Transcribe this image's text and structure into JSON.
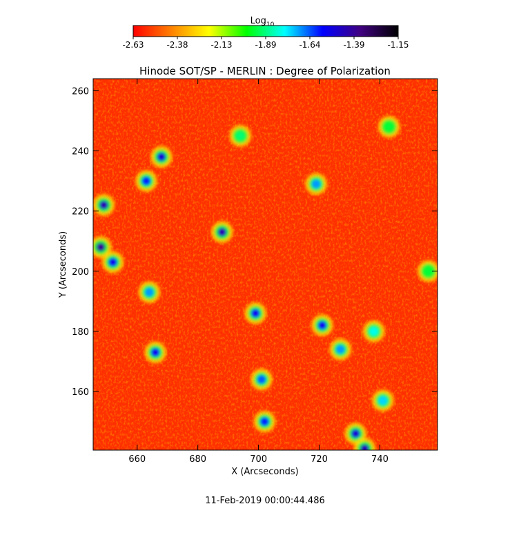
{
  "chart_data": {
    "type": "heatmap",
    "title": "Hinode SOT/SP - MERLIN : Degree of Polarization",
    "xlabel": "X (Arcseconds)",
    "ylabel": "Y (Arcseconds)",
    "xlim": [
      645.5,
      759
    ],
    "ylim": [
      140.5,
      264
    ],
    "x_ticks": [
      660,
      680,
      700,
      720,
      740
    ],
    "y_ticks": [
      160,
      180,
      200,
      220,
      240,
      260
    ],
    "colorbar": {
      "title": "Log",
      "title_sub": "10",
      "min": -2.63,
      "max": -1.15,
      "tick_labels": [
        "-2.63",
        "-2.38",
        "-2.13",
        "-1.89",
        "-1.64",
        "-1.39",
        "-1.15"
      ],
      "colormap": [
        "#ff0000",
        "#ff8000",
        "#ffff00",
        "#00ff00",
        "#00ffff",
        "#0000ff",
        "#400080",
        "#000000"
      ]
    },
    "background_level": -2.55,
    "features": [
      {
        "x": 649,
        "y": 222,
        "level": -1.45
      },
      {
        "x": 648,
        "y": 208,
        "level": -1.4
      },
      {
        "x": 652,
        "y": 203,
        "level": -1.55
      },
      {
        "x": 668,
        "y": 238,
        "level": -1.5
      },
      {
        "x": 663,
        "y": 230,
        "level": -1.6
      },
      {
        "x": 688,
        "y": 213,
        "level": -1.45
      },
      {
        "x": 699,
        "y": 186,
        "level": -1.55
      },
      {
        "x": 701,
        "y": 164,
        "level": -1.65
      },
      {
        "x": 702,
        "y": 150,
        "level": -1.6
      },
      {
        "x": 666,
        "y": 173,
        "level": -1.55
      },
      {
        "x": 664,
        "y": 193,
        "level": -1.7
      },
      {
        "x": 721,
        "y": 182,
        "level": -1.55
      },
      {
        "x": 727,
        "y": 174,
        "level": -1.7
      },
      {
        "x": 738,
        "y": 180,
        "level": -1.8
      },
      {
        "x": 732,
        "y": 146,
        "level": -1.5
      },
      {
        "x": 735,
        "y": 141,
        "level": -1.45
      },
      {
        "x": 719,
        "y": 229,
        "level": -1.7
      },
      {
        "x": 741,
        "y": 157,
        "level": -1.75
      },
      {
        "x": 694,
        "y": 245,
        "level": -1.9
      },
      {
        "x": 743,
        "y": 248,
        "level": -1.95
      },
      {
        "x": 756,
        "y": 200,
        "level": -1.95
      }
    ]
  },
  "timestamp": "11-Feb-2019 00:00:44.486"
}
